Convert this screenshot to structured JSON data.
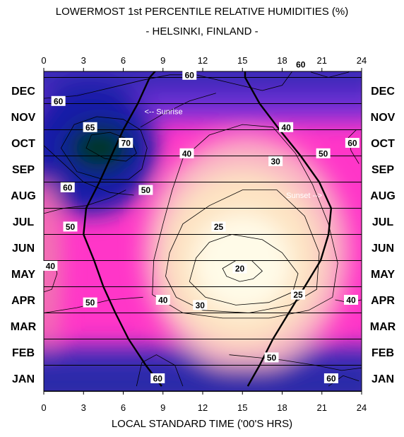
{
  "chart_data": {
    "type": "heatmap",
    "title": "LOWERMOST 1st PERCENTILE RELATIVE HUMIDITIES (%)",
    "subtitle": "- HELSINKI, FINLAND -",
    "xlabel": "LOCAL STANDARD TIME ('00'S HRS)",
    "x_ticks": [
      "0",
      "3",
      "6",
      "9",
      "12",
      "15",
      "18",
      "21",
      "24"
    ],
    "xlim": [
      0,
      24
    ],
    "y_categories": [
      "JAN",
      "FEB",
      "MAR",
      "APR",
      "MAY",
      "JUN",
      "JUL",
      "AUG",
      "SEP",
      "OCT",
      "NOV",
      "DEC"
    ],
    "grid": true,
    "contour_levels": [
      20,
      25,
      30,
      40,
      50,
      60,
      65,
      70
    ],
    "contour_labels": [
      {
        "text": "60",
        "hour": 1.1,
        "month": 10.6
      },
      {
        "text": "65",
        "hour": 3.5,
        "month": 9.6
      },
      {
        "text": "70",
        "hour": 6.2,
        "month": 9.0
      },
      {
        "text": "60",
        "hour": 11.0,
        "month": 11.6
      },
      {
        "text": "60",
        "hour": 19.4,
        "month": 12.0
      },
      {
        "text": "60",
        "hour": 23.3,
        "month": 9.0
      },
      {
        "text": "40",
        "hour": 10.8,
        "month": 8.6
      },
      {
        "text": "40",
        "hour": 18.3,
        "month": 9.6
      },
      {
        "text": "50",
        "hour": 21.1,
        "month": 8.6
      },
      {
        "text": "30",
        "hour": 17.5,
        "month": 8.3
      },
      {
        "text": "60",
        "hour": 1.8,
        "month": 7.3
      },
      {
        "text": "50",
        "hour": 7.7,
        "month": 7.2
      },
      {
        "text": "50",
        "hour": 2.0,
        "month": 5.8
      },
      {
        "text": "25",
        "hour": 13.2,
        "month": 5.8
      },
      {
        "text": "40",
        "hour": 0.5,
        "month": 4.3
      },
      {
        "text": "20",
        "hour": 14.8,
        "month": 4.2
      },
      {
        "text": "25",
        "hour": 19.2,
        "month": 3.2
      },
      {
        "text": "50",
        "hour": 3.5,
        "month": 2.9
      },
      {
        "text": "40",
        "hour": 9.0,
        "month": 3.0
      },
      {
        "text": "30",
        "hour": 11.8,
        "month": 2.8
      },
      {
        "text": "40",
        "hour": 23.2,
        "month": 3.0
      },
      {
        "text": "50",
        "hour": 17.2,
        "month": 0.8
      },
      {
        "text": "60",
        "hour": 8.6,
        "month": 0.0
      },
      {
        "text": "60",
        "hour": 21.7,
        "month": 0.0
      }
    ],
    "annotations": [
      {
        "text": "<-- Sunrise",
        "hour": 7.6,
        "month": 10.2
      },
      {
        "text": "Sunset -->",
        "hour": 18.3,
        "month": 7.0
      }
    ],
    "sunrise_curve": [
      [
        8.9,
        -0.3
      ],
      [
        7.7,
        0.5
      ],
      [
        6.4,
        1.5
      ],
      [
        5.4,
        2.5
      ],
      [
        4.5,
        3.5
      ],
      [
        3.8,
        4.5
      ],
      [
        3.0,
        5.5
      ],
      [
        3.2,
        6.5
      ],
      [
        4.2,
        7.5
      ],
      [
        5.1,
        8.5
      ],
      [
        6.0,
        9.5
      ],
      [
        7.1,
        10.5
      ],
      [
        8.0,
        11.5
      ],
      [
        9.4,
        12.3
      ]
    ],
    "sunset_curve": [
      [
        15.4,
        -0.3
      ],
      [
        16.3,
        0.5
      ],
      [
        17.3,
        1.5
      ],
      [
        18.5,
        2.5
      ],
      [
        19.7,
        3.5
      ],
      [
        20.9,
        4.5
      ],
      [
        21.5,
        5.5
      ],
      [
        21.7,
        6.5
      ],
      [
        20.8,
        7.5
      ],
      [
        19.4,
        8.5
      ],
      [
        17.8,
        9.5
      ],
      [
        16.3,
        10.5
      ],
      [
        15.2,
        11.5
      ],
      [
        15.2,
        12.3
      ]
    ],
    "colors": {
      "low_values": "#fffbe8",
      "mid_values": "#ff36c8",
      "high_values": "#141fa8",
      "peak_values": "#053528"
    }
  }
}
